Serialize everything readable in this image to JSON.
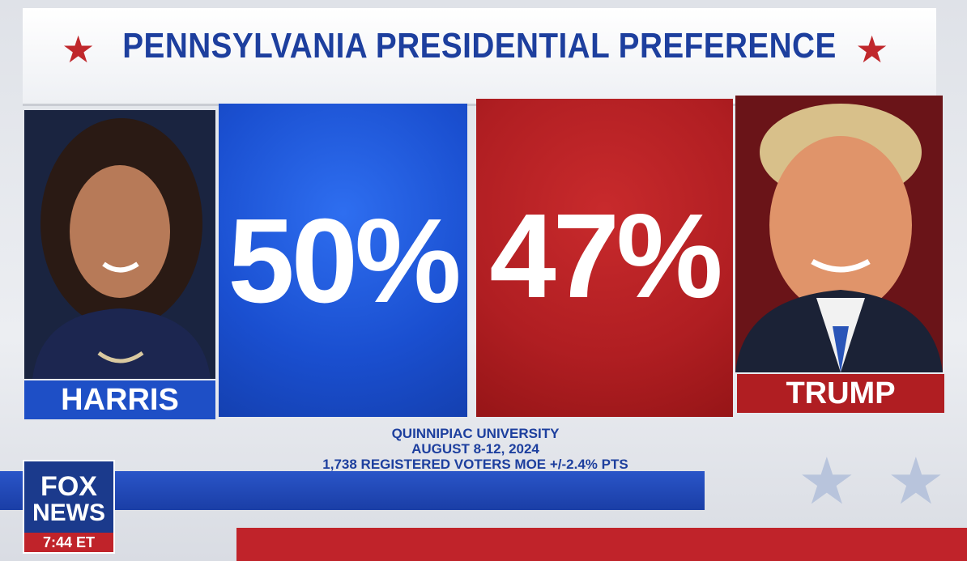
{
  "header": {
    "title": "PENNSYLVANIA PRESIDENTIAL PREFERENCE"
  },
  "candidates": [
    {
      "name": "HARRIS",
      "share": "50%"
    },
    {
      "name": "TRUMP",
      "share": "47%"
    }
  ],
  "source": {
    "lines": [
      "QUINNIPIAC UNIVERSITY",
      "AUGUST 8-12, 2024",
      "1,738 REGISTERED VOTERS MOE +/-2.4% PTS"
    ]
  },
  "network": {
    "logo": [
      "FOX",
      "NEWS"
    ],
    "time": "7:44 ET"
  }
}
